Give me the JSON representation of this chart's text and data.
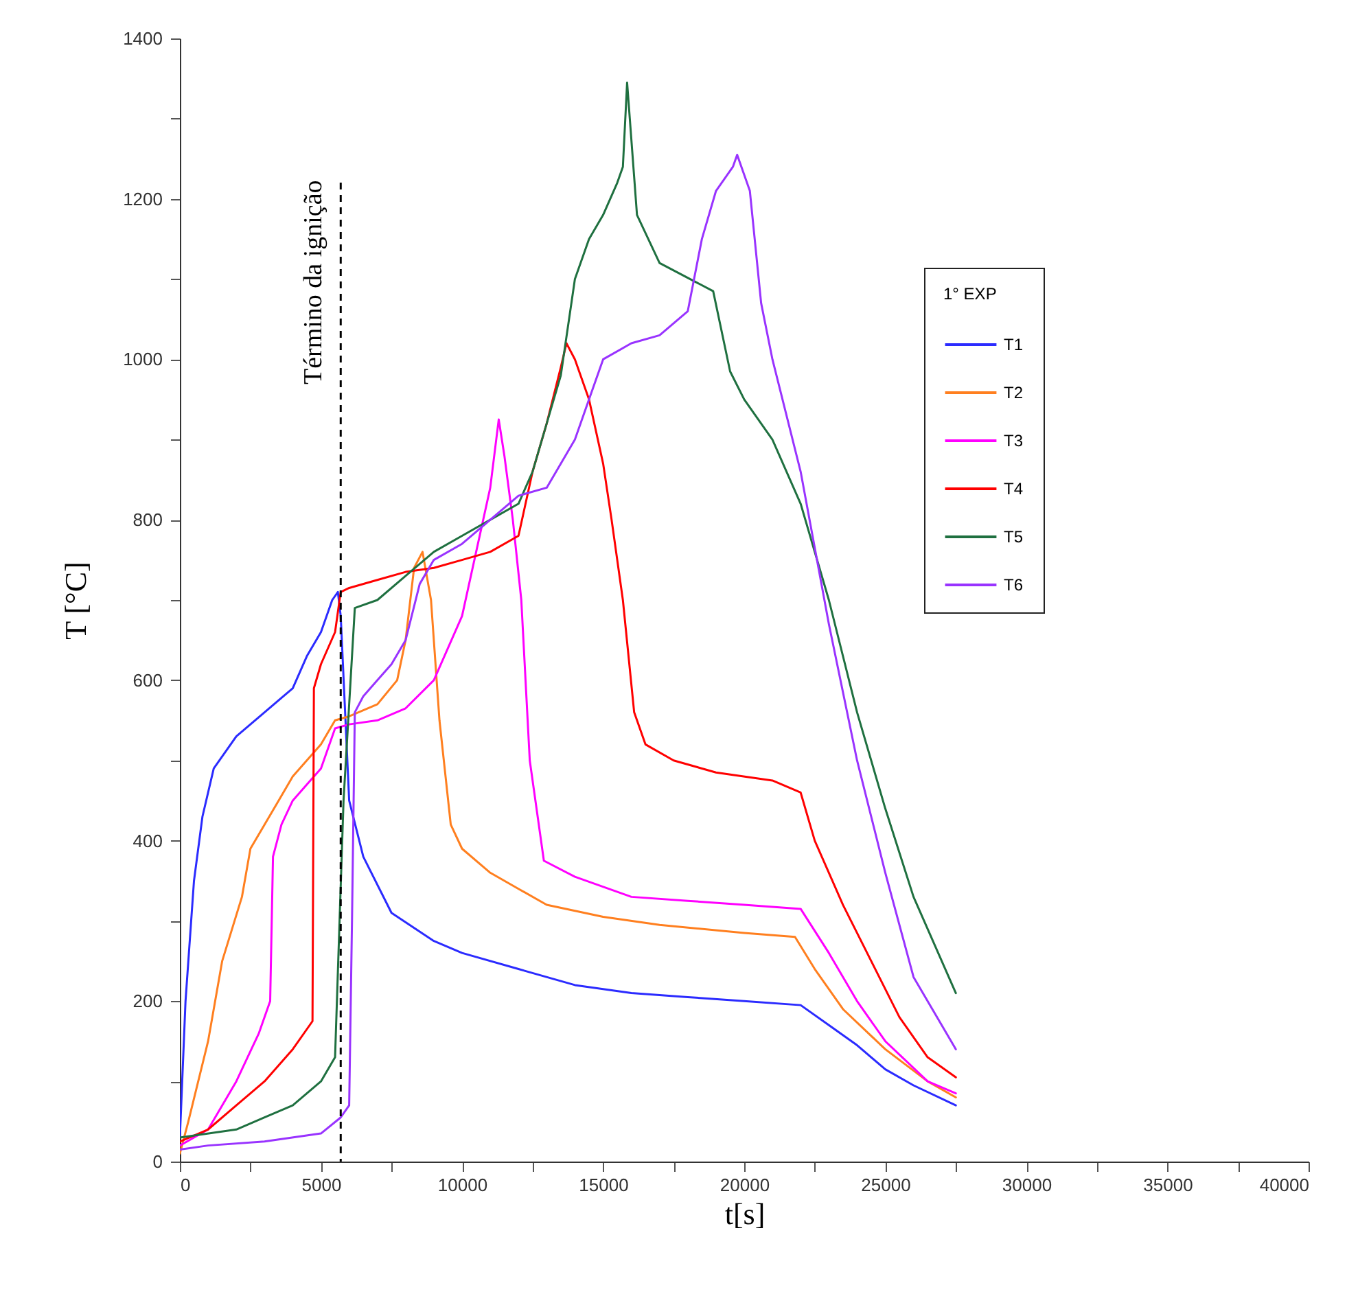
{
  "chart_data": {
    "type": "line",
    "xlabel": "t[s]",
    "ylabel": "T [°C]",
    "legend_title": "1° EXP",
    "legend": "top right",
    "grid": false,
    "marker": "none",
    "line_style": "solid",
    "xlim": [
      0,
      40000
    ],
    "ylim": [
      0,
      1400
    ],
    "xticks": [
      0,
      {
        "value": 2500,
        "label": null
      },
      5000,
      {
        "value": 7500,
        "label": null
      },
      10000,
      {
        "value": 12500,
        "label": null
      },
      15000,
      {
        "value": 17500,
        "label": null
      },
      20000,
      {
        "value": 22500,
        "label": null
      },
      25000,
      {
        "value": 27500,
        "label": null
      },
      30000,
      {
        "value": 32500,
        "label": null
      },
      35000,
      {
        "value": 37500,
        "label": null
      },
      40000
    ],
    "yticks": [
      0,
      {
        "value": 100,
        "label": null
      },
      200,
      {
        "value": 300,
        "label": null
      },
      400,
      {
        "value": 500,
        "label": null
      },
      600,
      {
        "value": 700,
        "label": null
      },
      800,
      {
        "value": 900,
        "label": null
      },
      1000,
      {
        "value": 1100,
        "label": null
      },
      1200,
      {
        "value": 1300,
        "label": null
      },
      1400
    ],
    "ref_lines": [
      {
        "axis": "x",
        "value": 5700,
        "label": "Término da ignição",
        "color": "#000000",
        "line_style": "dashed"
      }
    ],
    "series": [
      {
        "name": "T1",
        "color": "#2b2bff",
        "x": [
          0,
          200,
          500,
          800,
          1200,
          2000,
          3000,
          4000,
          4500,
          5000,
          5400,
          5600,
          5700,
          6000,
          6500,
          7500,
          9000,
          10000,
          12000,
          14000,
          16000,
          18000,
          20000,
          22000,
          23000,
          24000,
          25000,
          26000,
          27500
        ],
        "values": [
          30,
          200,
          350,
          430,
          490,
          530,
          560,
          590,
          630,
          660,
          700,
          710,
          680,
          450,
          380,
          310,
          275,
          260,
          240,
          220,
          210,
          205,
          200,
          195,
          170,
          145,
          115,
          95,
          70
        ]
      },
      {
        "name": "T2",
        "color": "#ff7f1f",
        "x": [
          0,
          300,
          1000,
          1500,
          2200,
          2500,
          3000,
          3500,
          4000,
          5000,
          5500,
          6000,
          7000,
          7700,
          8000,
          8300,
          8600,
          8900,
          9200,
          9600,
          10000,
          11000,
          12000,
          13000,
          15000,
          17000,
          20000,
          21800,
          22500,
          23500,
          25000,
          26500,
          27500
        ],
        "values": [
          10,
          50,
          150,
          250,
          330,
          390,
          420,
          450,
          480,
          520,
          550,
          555,
          570,
          600,
          650,
          740,
          760,
          700,
          550,
          420,
          390,
          360,
          340,
          320,
          305,
          295,
          285,
          280,
          240,
          190,
          140,
          100,
          80
        ]
      },
      {
        "name": "T3",
        "color": "#ff00ff",
        "x": [
          0,
          1000,
          2000,
          2800,
          3200,
          3300,
          3600,
          4000,
          4500,
          5000,
          5500,
          6000,
          7000,
          8000,
          9000,
          10000,
          10500,
          11000,
          11300,
          11500,
          11800,
          12100,
          12400,
          12900,
          14000,
          16000,
          18000,
          20000,
          22000,
          23000,
          24000,
          25000,
          26500,
          27500
        ],
        "values": [
          20,
          40,
          100,
          160,
          200,
          380,
          420,
          450,
          470,
          490,
          540,
          545,
          550,
          565,
          600,
          680,
          760,
          840,
          925,
          880,
          800,
          700,
          500,
          375,
          355,
          330,
          325,
          320,
          315,
          260,
          200,
          150,
          100,
          85
        ]
      },
      {
        "name": "T4",
        "color": "#ff0000",
        "x": [
          0,
          1000,
          2000,
          3000,
          4000,
          4700,
          4750,
          5000,
          5500,
          5700,
          6000,
          7000,
          8000,
          9000,
          10000,
          11000,
          12000,
          12500,
          13000,
          13500,
          13700,
          14000,
          14500,
          15000,
          15300,
          15700,
          16100,
          16500,
          17500,
          19000,
          21000,
          22000,
          22500,
          23500,
          24500,
          25500,
          26500,
          27500
        ],
        "values": [
          25,
          40,
          70,
          100,
          140,
          175,
          590,
          620,
          660,
          710,
          715,
          725,
          735,
          740,
          750,
          760,
          780,
          860,
          920,
          990,
          1020,
          1000,
          950,
          870,
          800,
          700,
          560,
          520,
          500,
          485,
          475,
          460,
          400,
          320,
          250,
          180,
          130,
          105
        ]
      },
      {
        "name": "T5",
        "color": "#1f7040",
        "x": [
          0,
          2000,
          3000,
          4000,
          5000,
          5500,
          5800,
          6200,
          7000,
          8000,
          9000,
          10000,
          11000,
          12000,
          12500,
          13000,
          13500,
          14000,
          14500,
          15000,
          15500,
          15700,
          15850,
          16200,
          17000,
          18900,
          19500,
          20000,
          21000,
          22000,
          23000,
          24000,
          25000,
          26000,
          27500
        ],
        "values": [
          30,
          40,
          55,
          70,
          100,
          130,
          450,
          690,
          700,
          730,
          760,
          780,
          800,
          820,
          860,
          920,
          980,
          1100,
          1150,
          1180,
          1220,
          1240,
          1345,
          1180,
          1120,
          1085,
          985,
          950,
          900,
          820,
          700,
          560,
          440,
          330,
          210
        ]
      },
      {
        "name": "T6",
        "color": "#9933ff",
        "x": [
          0,
          1000,
          3000,
          5000,
          5700,
          6000,
          6100,
          6200,
          6500,
          7000,
          7500,
          8000,
          8500,
          9000,
          10000,
          11000,
          12000,
          13000,
          14000,
          14500,
          15000,
          16000,
          17000,
          18000,
          18500,
          19000,
          19600,
          19750,
          20200,
          20600,
          21000,
          22000,
          23000,
          24000,
          25000,
          26000,
          27500
        ],
        "values": [
          15,
          20,
          25,
          35,
          55,
          70,
          300,
          560,
          580,
          600,
          620,
          650,
          720,
          750,
          770,
          800,
          830,
          840,
          900,
          950,
          1000,
          1020,
          1030,
          1060,
          1150,
          1210,
          1240,
          1255,
          1210,
          1070,
          1000,
          860,
          670,
          500,
          360,
          230,
          140
        ]
      }
    ]
  }
}
